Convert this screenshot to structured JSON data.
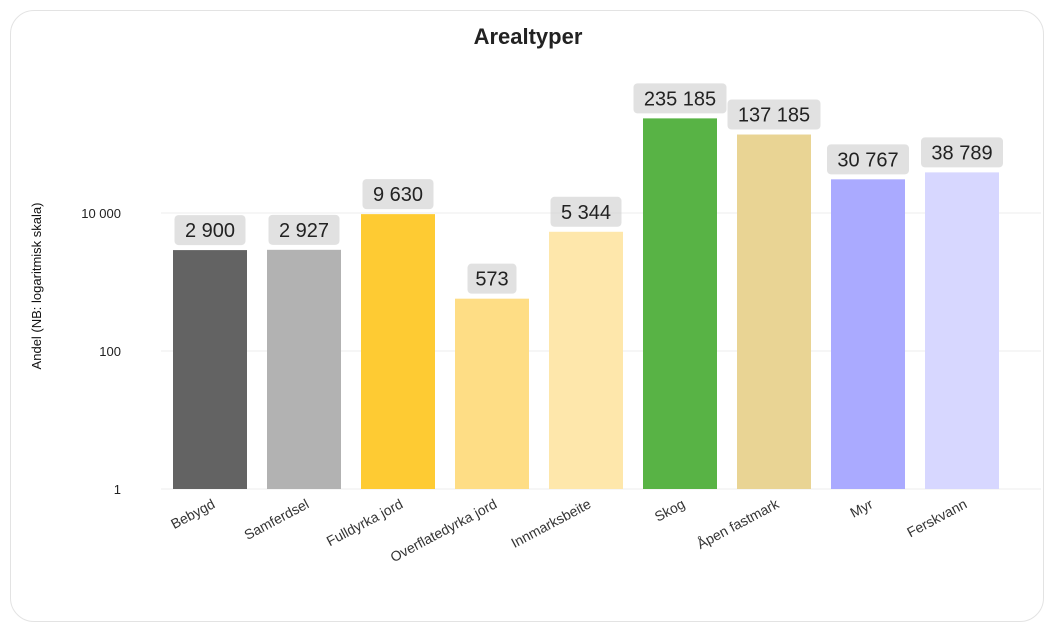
{
  "chart_data": {
    "type": "bar",
    "title": "Arealtyper",
    "ylabel": "Andel (NB: logaritmisk skala)",
    "xlabel": "",
    "yscale": "log",
    "ylim": [
      1,
      230000
    ],
    "yticks": [
      {
        "value": 1,
        "label": "1"
      },
      {
        "value": 100,
        "label": "100"
      },
      {
        "value": 10000,
        "label": "10 000"
      }
    ],
    "grid": true,
    "categories": [
      "Bebygd",
      "Samferdsel",
      "Fulldyrka jord",
      "Overflatedyrka jord",
      "Innmarksbeite",
      "Skog",
      "Åpen fastmark",
      "Myr",
      "Ferskvann"
    ],
    "values": [
      2900,
      2927,
      9630,
      573,
      5344,
      235185,
      137185,
      30767,
      38789
    ],
    "value_labels": [
      "2 900",
      "2 927",
      "9 630",
      "573",
      "5 344",
      "235 185",
      "137 185",
      "30 767",
      "38 789"
    ],
    "colors": [
      "#636363",
      "#b2b2b2",
      "#fecb33",
      "#fedd85",
      "#fee7ab",
      "#58b345",
      "#e9d494",
      "#aaaaff",
      "#d7d7ff"
    ]
  }
}
